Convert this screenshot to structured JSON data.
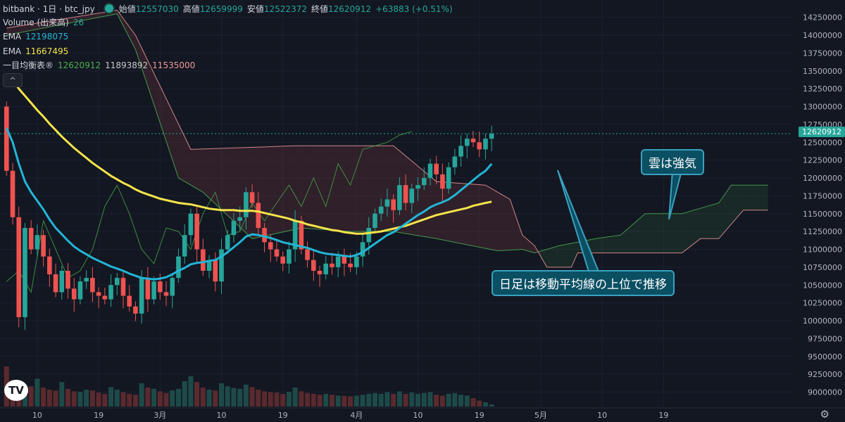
{
  "header": {
    "symbol": "bitbank · 1日 · btc_jpy",
    "open_label": "始値",
    "open": "12557030",
    "high_label": "高値",
    "high": "12659999",
    "low_label": "安値",
    "low": "12522372",
    "close_label": "終値",
    "close": "12620912",
    "change": "+63883 (+0.51%)",
    "volume_label": "Volume (出来高)",
    "volume_value": "26",
    "ema1_label": "EMA",
    "ema1_value": "12198075",
    "ema2_label": "EMA",
    "ema2_value": "11667495",
    "ichimoku_label": "一目均衡表®",
    "ichimoku_v1": "12620912",
    "ichimoku_v2": "11893892",
    "ichimoku_v3": "11535000",
    "collapse_icon": "^"
  },
  "annotations": {
    "cloud": "雲は強気",
    "trend": "日足は移動平均線の上位で推移"
  },
  "logo": "TV",
  "colors": {
    "up": "#26a69a",
    "down": "#ef5350",
    "ema_short": "#22b5d6",
    "ema_long": "#f5e44a",
    "span_a": "#4caf50",
    "span_b": "#ef9a9a",
    "lagging": "#43a047"
  },
  "chart_data": {
    "type": "candlestick",
    "y_ticks": [
      "14250000",
      "14000000",
      "13750000",
      "13500000",
      "13250000",
      "13000000",
      "12750000",
      "12500000",
      "12250000",
      "12000000",
      "11750000",
      "11500000",
      "11250000",
      "11000000",
      "10750000",
      "10500000",
      "10250000",
      "10000000",
      "9750000",
      "9500000",
      "9250000",
      "9000000"
    ],
    "x_ticks": [
      "10",
      "19",
      "3月",
      "10",
      "19",
      "4月",
      "10",
      "19",
      "5月",
      "10",
      "19"
    ],
    "x_tick_index": [
      5,
      15,
      25,
      35,
      45,
      57,
      67,
      77,
      87,
      97,
      107
    ],
    "last_price": "12620912",
    "closes": [
      12100000,
      11450000,
      10050000,
      11300000,
      11000000,
      11200000,
      10900000,
      10650000,
      10400000,
      10700000,
      10450000,
      10300000,
      10550000,
      10600000,
      10400000,
      10350000,
      10300000,
      10500000,
      10600000,
      10350000,
      10200000,
      10100000,
      10600000,
      10300000,
      10550000,
      10400000,
      10350000,
      10600000,
      10900000,
      11200000,
      11500000,
      11000000,
      10700000,
      10850000,
      10550000,
      11000000,
      11200000,
      11400000,
      11450000,
      11800000,
      11650000,
      11300000,
      11100000,
      11000000,
      10900000,
      10800000,
      11000000,
      11400000,
      11000000,
      10850000,
      10700000,
      10650000,
      10800000,
      10750000,
      10900000,
      10800000,
      10750000,
      10900000,
      11100000,
      11300000,
      11500000,
      11600000,
      11700000,
      11550000,
      11900000,
      11650000,
      11850000,
      11900000,
      12000000,
      12200000,
      12050000,
      11850000,
      12150000,
      12300000,
      12450000,
      12550000,
      12500000,
      12400000,
      12550000,
      12620912
    ],
    "ema_short": [
      12700000,
      12500000,
      12200000,
      11950000,
      11800000,
      11680000,
      11560000,
      11420000,
      11300000,
      11210000,
      11120000,
      11040000,
      10980000,
      10930000,
      10880000,
      10840000,
      10800000,
      10760000,
      10730000,
      10700000,
      10660000,
      10630000,
      10600000,
      10590000,
      10580000,
      10590000,
      10610000,
      10650000,
      10700000,
      10740000,
      10790000,
      10810000,
      10820000,
      10840000,
      10850000,
      10900000,
      10960000,
      11030000,
      11100000,
      11180000,
      11210000,
      11200000,
      11180000,
      11160000,
      11130000,
      11100000,
      11080000,
      11060000,
      11040000,
      11020000,
      10990000,
      10960000,
      10940000,
      10930000,
      10920000,
      10910000,
      10900000,
      10920000,
      10960000,
      11020000,
      11080000,
      11140000,
      11200000,
      11240000,
      11300000,
      11360000,
      11420000,
      11480000,
      11530000,
      11590000,
      11630000,
      11660000,
      11700000,
      11760000,
      11830000,
      11900000,
      11970000,
      12040000,
      12100000,
      12198075
    ],
    "ema_long": [
      13450000,
      13380000,
      13250000,
      13150000,
      13050000,
      12950000,
      12860000,
      12760000,
      12670000,
      12580000,
      12500000,
      12420000,
      12350000,
      12280000,
      12210000,
      12150000,
      12090000,
      12030000,
      11980000,
      11930000,
      11890000,
      11840000,
      11800000,
      11770000,
      11740000,
      11710000,
      11690000,
      11670000,
      11650000,
      11640000,
      11630000,
      11610000,
      11590000,
      11570000,
      11560000,
      11550000,
      11550000,
      11550000,
      11540000,
      11540000,
      11540000,
      11530000,
      11510000,
      11490000,
      11470000,
      11450000,
      11430000,
      11400000,
      11380000,
      11350000,
      11330000,
      11310000,
      11290000,
      11270000,
      11260000,
      11240000,
      11230000,
      11220000,
      11220000,
      11230000,
      11240000,
      11250000,
      11270000,
      11290000,
      11310000,
      11330000,
      11360000,
      11390000,
      11420000,
      11450000,
      11480000,
      11500000,
      11520000,
      11540000,
      11560000,
      11580000,
      11610000,
      11630000,
      11650000,
      11667495
    ],
    "span_a": [
      [
        0,
        14000000
      ],
      [
        18,
        14300000
      ],
      [
        21,
        13800000
      ],
      [
        28,
        12000000
      ],
      [
        32,
        11800000
      ],
      [
        40,
        11150000
      ],
      [
        48,
        11300000
      ],
      [
        56,
        11250000
      ],
      [
        63,
        11250000
      ],
      [
        70,
        11150000
      ],
      [
        80,
        10980000
      ],
      [
        84,
        11000000
      ],
      [
        86,
        10950000
      ],
      [
        90,
        11050000
      ],
      [
        96,
        11150000
      ],
      [
        100,
        11200000
      ],
      [
        104,
        11500000
      ],
      [
        110,
        11500000
      ],
      [
        116,
        11650000
      ],
      [
        118,
        11900000
      ],
      [
        124,
        11900000
      ]
    ],
    "span_b": [
      [
        0,
        14100000
      ],
      [
        18,
        14350000
      ],
      [
        21,
        14000000
      ],
      [
        30,
        12400000
      ],
      [
        47,
        12450000
      ],
      [
        63,
        12450000
      ],
      [
        70,
        11950000
      ],
      [
        78,
        11900000
      ],
      [
        82,
        11700000
      ],
      [
        84,
        11200000
      ],
      [
        86,
        11050000
      ],
      [
        88,
        10750000
      ],
      [
        92,
        10750000
      ],
      [
        93,
        10950000
      ],
      [
        110,
        10950000
      ],
      [
        113,
        11150000
      ],
      [
        116,
        11150000
      ],
      [
        120,
        11550000
      ],
      [
        124,
        11550000
      ]
    ],
    "lagging": [
      [
        0,
        10550000
      ],
      [
        2,
        10700000
      ],
      [
        4,
        10400000
      ],
      [
        6,
        11400000
      ],
      [
        8,
        11000000
      ],
      [
        10,
        10600000
      ],
      [
        12,
        10700000
      ],
      [
        14,
        11000000
      ],
      [
        16,
        11600000
      ],
      [
        18,
        11900000
      ],
      [
        20,
        11500000
      ],
      [
        22,
        11000000
      ],
      [
        24,
        10800000
      ],
      [
        26,
        11300000
      ],
      [
        28,
        11250000
      ],
      [
        30,
        11000000
      ],
      [
        32,
        11500000
      ],
      [
        34,
        11800000
      ],
      [
        36,
        11200000
      ],
      [
        38,
        11250000
      ],
      [
        40,
        11650000
      ],
      [
        42,
        11400000
      ],
      [
        44,
        11650000
      ],
      [
        46,
        11900000
      ],
      [
        48,
        11600000
      ],
      [
        50,
        12000000
      ],
      [
        52,
        11600000
      ],
      [
        54,
        12200000
      ],
      [
        56,
        11900000
      ],
      [
        58,
        12400000
      ],
      [
        60,
        12450000
      ],
      [
        62,
        12500000
      ],
      [
        64,
        12600000
      ],
      [
        66,
        12650000
      ]
    ],
    "volumes": [
      0.95,
      0.62,
      0.55,
      0.5,
      0.48,
      0.66,
      0.45,
      0.4,
      0.38,
      0.58,
      0.42,
      0.36,
      0.35,
      0.4,
      0.38,
      0.33,
      0.3,
      0.46,
      0.4,
      0.34,
      0.3,
      0.28,
      0.55,
      0.45,
      0.42,
      0.36,
      0.32,
      0.38,
      0.42,
      0.6,
      0.72,
      0.58,
      0.45,
      0.4,
      0.38,
      0.55,
      0.48,
      0.44,
      0.42,
      0.52,
      0.46,
      0.4,
      0.36,
      0.34,
      0.33,
      0.3,
      0.35,
      0.45,
      0.36,
      0.32,
      0.3,
      0.28,
      0.3,
      0.28,
      0.26,
      0.25,
      0.24,
      0.26,
      0.28,
      0.3,
      0.32,
      0.3,
      0.34,
      0.3,
      0.36,
      0.3,
      0.33,
      0.3,
      0.32,
      0.34,
      0.28,
      0.26,
      0.3,
      0.32,
      0.28,
      0.26,
      0.2,
      0.14,
      0.1,
      0.05
    ]
  }
}
